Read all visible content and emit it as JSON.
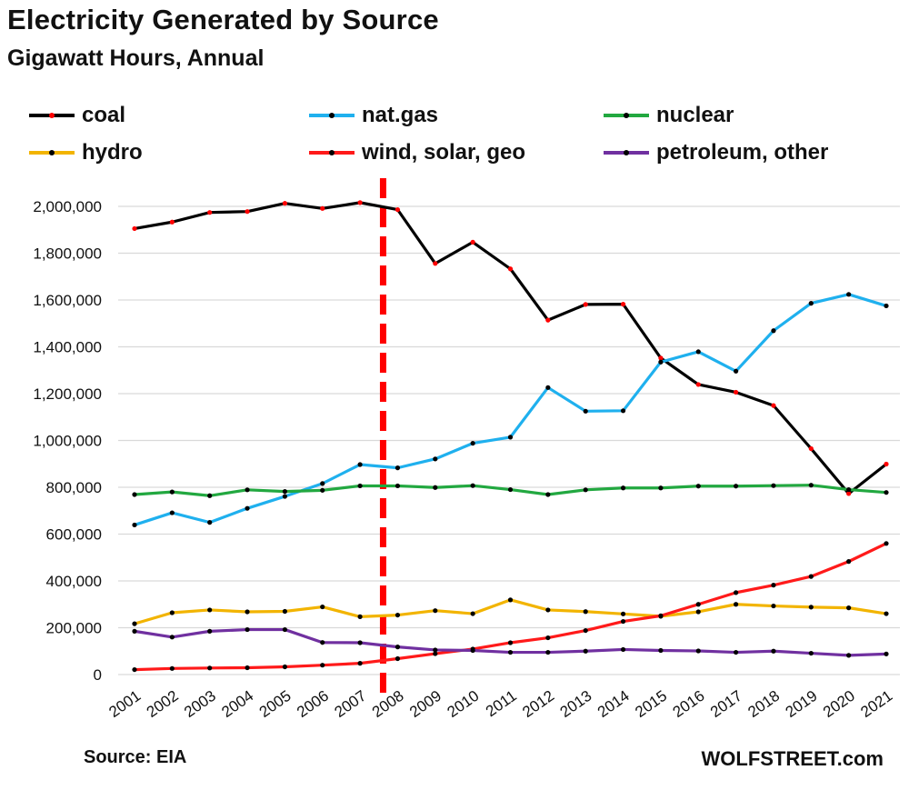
{
  "chart_data": {
    "type": "line",
    "title": "Electricity Generated by Source",
    "subtitle": "Gigawatt Hours, Annual",
    "xlabel": "",
    "ylabel": "",
    "ylim": [
      0,
      2000000
    ],
    "yticks": [
      "0",
      "200,000",
      "400,000",
      "600,000",
      "800,000",
      "1,000,000",
      "1,200,000",
      "1,400,000",
      "1,600,000",
      "1,800,000",
      "2,000,000"
    ],
    "categories": [
      "2001",
      "2002",
      "2003",
      "2004",
      "2005",
      "2006",
      "2007",
      "2008",
      "2009",
      "2010",
      "2011",
      "2012",
      "2013",
      "2014",
      "2015",
      "2016",
      "2017",
      "2018",
      "2019",
      "2020",
      "2021"
    ],
    "grid": true,
    "legend_position": "top",
    "marker_line_year": "2008",
    "series": [
      {
        "name": "coal",
        "color": "#000000",
        "marker_color": "#ff0000",
        "values": [
          1905000,
          1933000,
          1974000,
          1978000,
          2013000,
          1991000,
          2016000,
          1986000,
          1756000,
          1847000,
          1733000,
          1514000,
          1581000,
          1582000,
          1352000,
          1239000,
          1206000,
          1149000,
          965000,
          773000,
          899000
        ]
      },
      {
        "name": "nat.gas",
        "color": "#1fb0ee",
        "marker_color": "#000000",
        "values": [
          639000,
          691000,
          650000,
          710000,
          761000,
          816000,
          897000,
          883000,
          921000,
          988000,
          1014000,
          1226000,
          1125000,
          1127000,
          1335000,
          1379000,
          1296000,
          1469000,
          1586000,
          1624000,
          1575000
        ]
      },
      {
        "name": "nuclear",
        "color": "#22a840",
        "marker_color": "#000000",
        "values": [
          769000,
          780000,
          764000,
          789000,
          782000,
          787000,
          806000,
          806000,
          799000,
          807000,
          790000,
          769000,
          789000,
          797000,
          797000,
          805000,
          805000,
          807000,
          809000,
          790000,
          778000
        ]
      },
      {
        "name": "hydro",
        "color": "#f2b400",
        "marker_color": "#000000",
        "values": [
          217000,
          264000,
          276000,
          268000,
          270000,
          289000,
          247000,
          254000,
          273000,
          260000,
          319000,
          276000,
          269000,
          259000,
          249000,
          268000,
          300000,
          293000,
          288000,
          285000,
          260000
        ]
      },
      {
        "name": "wind, solar, geo",
        "color": "#ff1a1a",
        "marker_color": "#000000",
        "values": [
          21000,
          26000,
          28000,
          29000,
          33000,
          40000,
          48000,
          68000,
          89000,
          109000,
          136000,
          157000,
          188000,
          227000,
          251000,
          300000,
          350000,
          382000,
          419000,
          483000,
          560000
        ]
      },
      {
        "name": "petroleum, other",
        "color": "#7030a0",
        "marker_color": "#000000",
        "values": [
          185000,
          160000,
          185000,
          192000,
          192000,
          137000,
          136000,
          118000,
          105000,
          103000,
          95000,
          95000,
          100000,
          107000,
          103000,
          101000,
          95000,
          100000,
          91000,
          82000,
          88000
        ]
      }
    ]
  },
  "footer": {
    "source": "Source: EIA",
    "brand": "WOLFSTREET.com"
  }
}
